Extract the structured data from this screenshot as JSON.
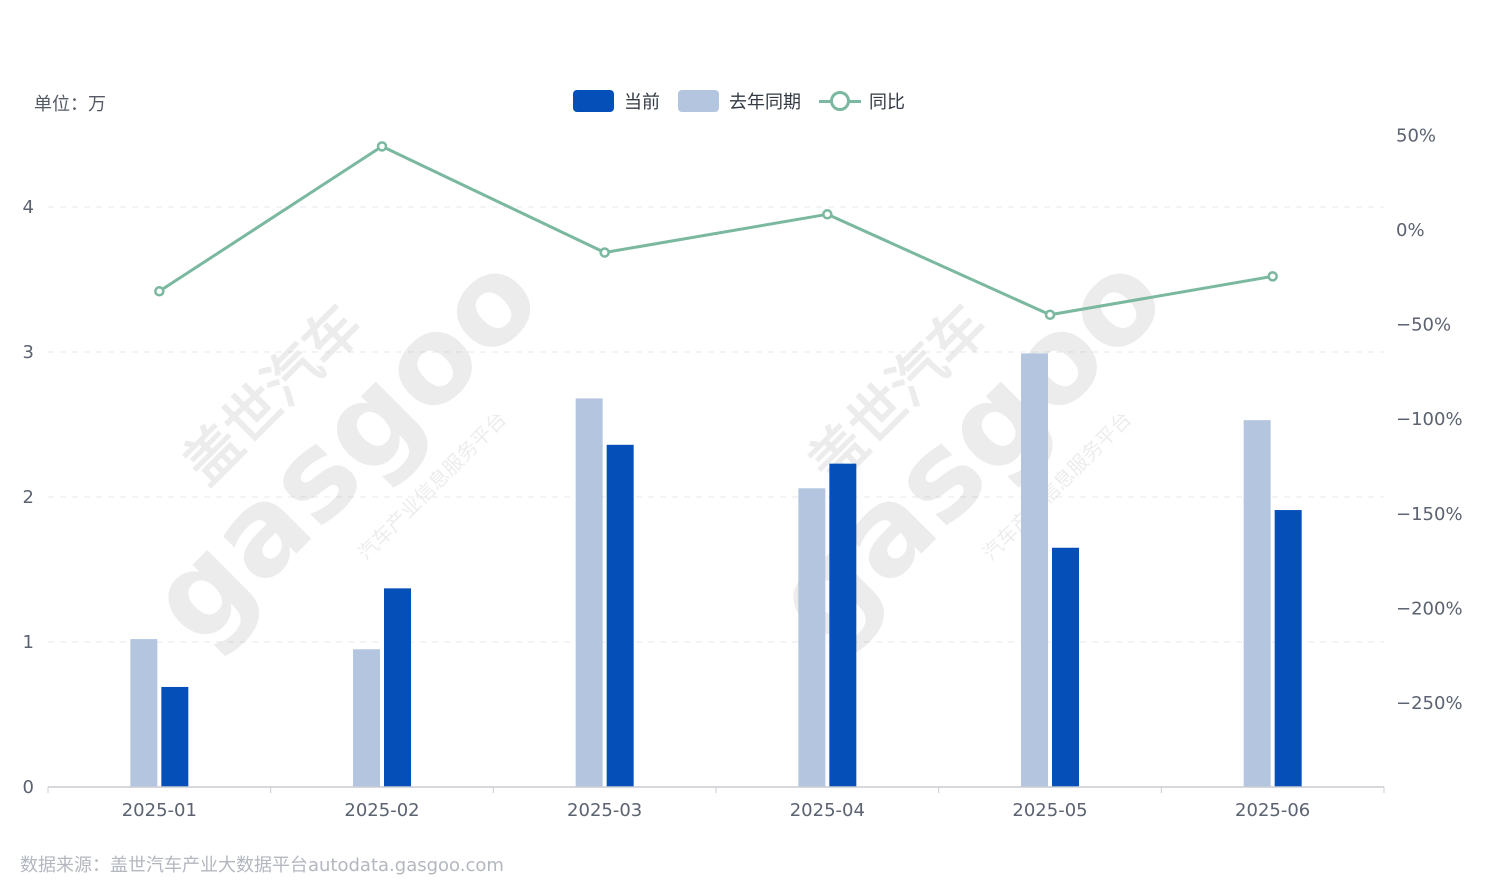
{
  "unit_label": "单位：万",
  "source_label": "数据来源：盖世汽车产业大数据平台autodata.gasgoo.com",
  "legend": {
    "current": "当前",
    "last_year": "去年同期",
    "yoy": "同比"
  },
  "watermark": {
    "brand_cn": "盖世汽车",
    "brand_en": "gasgoo",
    "tagline": "汽车产业信息服务平台"
  },
  "colors": {
    "current": "#0550b8",
    "last_year": "#b4c5e0",
    "yoy": "#7ab89f",
    "grid": "#e8eaee",
    "axis": "#c9ccd2"
  },
  "chart_data": {
    "type": "bar",
    "categories": [
      "2025-01",
      "2025-02",
      "2025-03",
      "2025-04",
      "2025-05",
      "2025-06"
    ],
    "series": [
      {
        "name": "去年同期",
        "values": [
          1.02,
          0.95,
          2.68,
          2.06,
          2.99,
          2.53
        ]
      },
      {
        "name": "当前",
        "values": [
          0.69,
          1.37,
          2.36,
          2.23,
          1.65,
          1.91
        ]
      }
    ],
    "line_series": {
      "name": "同比",
      "type": "line",
      "axis": "right",
      "values": [
        -32.4,
        44.2,
        -11.9,
        8.3,
        -44.8,
        -24.5
      ]
    },
    "ylim": [
      0,
      4
    ],
    "yticks": [
      0,
      1,
      2,
      3,
      4
    ],
    "y2ticks": [
      -250,
      -200,
      -150,
      -100,
      -50,
      0,
      50
    ],
    "y2tick_labels": [
      "−250%",
      "−200%",
      "−150%",
      "−100%",
      "−50%",
      "0%",
      "50%"
    ],
    "grid": true,
    "legend_position": "top-center"
  }
}
